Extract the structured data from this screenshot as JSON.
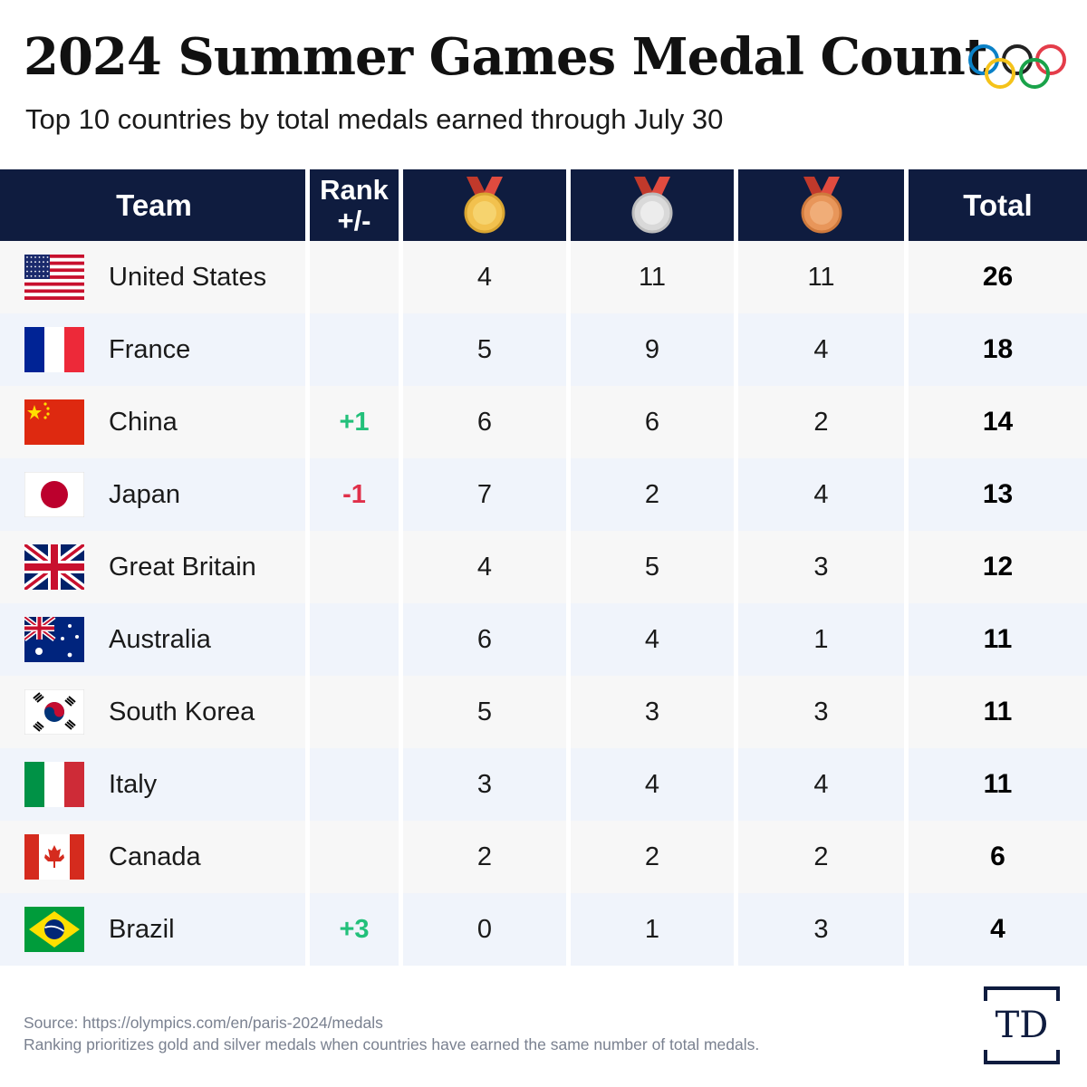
{
  "title": "2024 Summer Games Medal Count",
  "subtitle": "Top 10 countries by total medals earned through July 30",
  "header": {
    "team": "Team",
    "rank_line1": "Rank",
    "rank_line2": "+/-",
    "gold_icon": "gold-medal-icon",
    "silver_icon": "silver-medal-icon",
    "bronze_icon": "bronze-medal-icon",
    "total": "Total"
  },
  "colors": {
    "header_bg": "#0f1c3f",
    "positive": "#22c07a",
    "negative": "#e0304a",
    "row_odd": "#f7f7f7",
    "row_even": "#f0f4fb",
    "gold": "#f2c14e",
    "silver": "#d9d9d9",
    "bronze": "#e8965a"
  },
  "chart_data": {
    "type": "table",
    "columns": [
      "Team",
      "Rank +/-",
      "Gold",
      "Silver",
      "Bronze",
      "Total"
    ],
    "rows": [
      {
        "flag": "usa-flag-icon",
        "team": "United States",
        "delta": "",
        "gold": "4",
        "silver": "11",
        "bronze": "11",
        "total": "26"
      },
      {
        "flag": "france-flag-icon",
        "team": "France",
        "delta": "",
        "gold": "5",
        "silver": "9",
        "bronze": "4",
        "total": "18"
      },
      {
        "flag": "china-flag-icon",
        "team": "China",
        "delta": "+1",
        "gold": "6",
        "silver": "6",
        "bronze": "2",
        "total": "14"
      },
      {
        "flag": "japan-flag-icon",
        "team": "Japan",
        "delta": "-1",
        "gold": "7",
        "silver": "2",
        "bronze": "4",
        "total": "13"
      },
      {
        "flag": "great-britain-flag-icon",
        "team": "Great Britain",
        "delta": "",
        "gold": "4",
        "silver": "5",
        "bronze": "3",
        "total": "12"
      },
      {
        "flag": "australia-flag-icon",
        "team": "Australia",
        "delta": "",
        "gold": "6",
        "silver": "4",
        "bronze": "1",
        "total": "11"
      },
      {
        "flag": "south-korea-flag-icon",
        "team": "South Korea",
        "delta": "",
        "gold": "5",
        "silver": "3",
        "bronze": "3",
        "total": "11"
      },
      {
        "flag": "italy-flag-icon",
        "team": "Italy",
        "delta": "",
        "gold": "3",
        "silver": "4",
        "bronze": "4",
        "total": "11"
      },
      {
        "flag": "canada-flag-icon",
        "team": "Canada",
        "delta": "",
        "gold": "2",
        "silver": "2",
        "bronze": "2",
        "total": "6"
      },
      {
        "flag": "brazil-flag-icon",
        "team": "Brazil",
        "delta": "+3",
        "gold": "0",
        "silver": "1",
        "bronze": "3",
        "total": "4"
      }
    ]
  },
  "footer": {
    "source": "Source: https://olympics.com/en/paris-2024/medals",
    "note": "Ranking prioritizes gold and silver medals when countries have earned the same number of total medals.",
    "logo": "TD",
    "logo_icon": "td-logo-icon",
    "rings_icon": "olympic-rings-icon"
  }
}
